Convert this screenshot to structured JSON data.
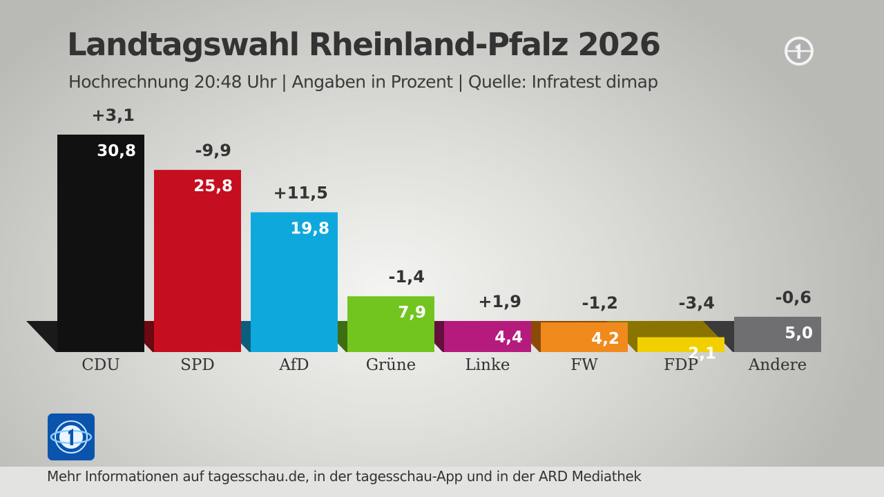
{
  "header": {
    "title": "Landtagswahl Rheinland-Pfalz 2026",
    "subtitle": "Hochrechnung 20:48 Uhr | Angaben in Prozent | Quelle: Infratest dimap"
  },
  "icons": {
    "broadcaster": "ard-logo-icon",
    "app": "tagesschau-logo-icon"
  },
  "footer": {
    "text": "Mehr Informationen auf tagesschau.de, in der tagesschau-App und in der ARD Mediathek"
  },
  "chart_data": {
    "type": "bar",
    "title": "Landtagswahl Rheinland-Pfalz 2026",
    "subtitle": "Hochrechnung 20:48 Uhr | Angaben in Prozent | Quelle: Infratest dimap",
    "categories": [
      "CDU",
      "SPD",
      "AfD",
      "Grüne",
      "Linke",
      "FW",
      "FDP",
      "Andere"
    ],
    "values": [
      30.8,
      25.8,
      19.8,
      7.9,
      4.4,
      4.2,
      2.1,
      5.0
    ],
    "value_labels": [
      "30,8",
      "25,8",
      "19,8",
      "7,9",
      "4,4",
      "4,2",
      "2,1",
      "5,0"
    ],
    "change_labels": [
      "+3,1",
      "-9,9",
      "+11,5",
      "-1,4",
      "+1,9",
      "-1,2",
      "-3,4",
      "-0,6"
    ],
    "changes": [
      3.1,
      -9.9,
      11.5,
      -1.4,
      1.9,
      -1.2,
      -3.4,
      -0.6
    ],
    "colors": [
      "#111111",
      "#c50e1f",
      "#0fa8dd",
      "#72c51f",
      "#b51b7d",
      "#f08a1c",
      "#f2d000",
      "#6f6f71"
    ],
    "shadow_colors": [
      "#1a1a1a",
      "#6b0810",
      "#0b5f7d",
      "#3f6e12",
      "#64103f",
      "#8a4a0a",
      "#8a7400",
      "#3a3a3b"
    ],
    "grid": false,
    "legend": "none"
  }
}
